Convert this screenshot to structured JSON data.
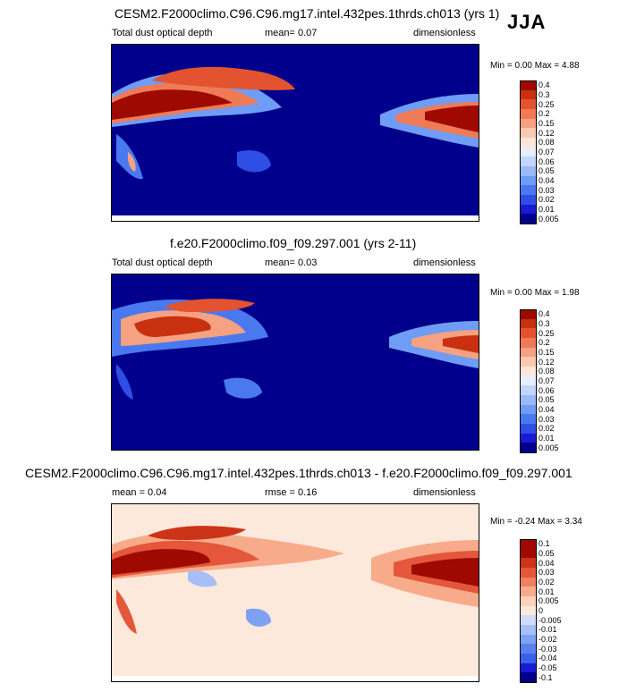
{
  "season": "JJA",
  "colors": {
    "seq": [
      "#00008c",
      "#1a1ad4",
      "#2e4ee6",
      "#4a78ee",
      "#6f9cf4",
      "#9ab9f7",
      "#c2d6fb",
      "#e6efff",
      "#fde7d9",
      "#fbc9b0",
      "#f6a182",
      "#ef7a56",
      "#e4532f",
      "#c8300f",
      "#9e0a00"
    ],
    "div": [
      "#00008c",
      "#1a1ad4",
      "#3a5fe8",
      "#5a80ee",
      "#7fa1f3",
      "#a6c0f7",
      "#cfdcfb",
      "#fde9dc",
      "#fcd2b8",
      "#f8ab8a",
      "#f08061",
      "#e4573a",
      "#cc3418",
      "#9e0a00"
    ]
  },
  "panels": [
    {
      "title": "CESM2.F2000climo.C96.C96.mg17.intel.432pes.1thrds.ch013 (yrs 1)",
      "left_label": "Total dust optical depth",
      "mean_text": "mean=  0.07",
      "right_label": "dimensionless",
      "minmax": "Min =  0.00 Max =  4.88",
      "colorbar_labels": [
        "0.005",
        "0.01",
        "0.02",
        "0.03",
        "0.04",
        "0.05",
        "0.06",
        "0.07",
        "0.08",
        "0.12",
        "0.15",
        "0.2",
        "0.25",
        "0.3",
        "0.4"
      ]
    },
    {
      "title": "f.e20.F2000climo.f09_f09.297.001 (yrs 2-11)",
      "left_label": "Total dust optical depth",
      "mean_text": "mean=  0.03",
      "right_label": "dimensionless",
      "minmax": "Min =  0.00 Max =  1.98",
      "colorbar_labels": [
        "0.005",
        "0.01",
        "0.02",
        "0.03",
        "0.04",
        "0.05",
        "0.06",
        "0.07",
        "0.08",
        "0.12",
        "0.15",
        "0.2",
        "0.25",
        "0.3",
        "0.4"
      ]
    },
    {
      "title": "CESM2.F2000climo.C96.C96.mg17.intel.432pes.1thrds.ch013 - f.e20.F2000climo.f09_f09.297.001",
      "left_label": "mean =  0.04",
      "mean_text": "rmse =  0.16",
      "right_label": "dimensionless",
      "minmax": "Min = -0.24 Max =  3.34",
      "colorbar_labels": [
        "-0.1",
        "-0.05",
        "-0.04",
        "-0.03",
        "-0.02",
        "-0.01",
        "-0.005",
        "0",
        "0.005",
        "0.01",
        "0.02",
        "0.03",
        "0.04",
        "0.05",
        "0.1"
      ]
    }
  ],
  "chart_data": [
    {
      "type": "heatmap",
      "title": "CESM2.F2000climo.C96.C96.mg17.intel.432pes.1thrds.ch013 (yrs 1)",
      "variable": "Total dust optical depth",
      "units": "dimensionless",
      "mean": 0.07,
      "min": 0.0,
      "max": 4.88,
      "levels": [
        0.005,
        0.01,
        0.02,
        0.03,
        0.04,
        0.05,
        0.06,
        0.07,
        0.08,
        0.12,
        0.15,
        0.2,
        0.25,
        0.3,
        0.4
      ]
    },
    {
      "type": "heatmap",
      "title": "f.e20.F2000climo.f09_f09.297.001 (yrs 2-11)",
      "variable": "Total dust optical depth",
      "units": "dimensionless",
      "mean": 0.03,
      "min": 0.0,
      "max": 1.98,
      "levels": [
        0.005,
        0.01,
        0.02,
        0.03,
        0.04,
        0.05,
        0.06,
        0.07,
        0.08,
        0.12,
        0.15,
        0.2,
        0.25,
        0.3,
        0.4
      ]
    },
    {
      "type": "heatmap",
      "title": "CESM2.F2000climo.C96.C96.mg17.intel.432pes.1thrds.ch013 - f.e20.F2000climo.f09_f09.297.001",
      "units": "dimensionless",
      "mean": 0.04,
      "rmse": 0.16,
      "min": -0.24,
      "max": 3.34,
      "levels": [
        -0.1,
        -0.05,
        -0.04,
        -0.03,
        -0.02,
        -0.01,
        -0.005,
        0,
        0.005,
        0.01,
        0.02,
        0.03,
        0.04,
        0.05,
        0.1
      ]
    }
  ]
}
